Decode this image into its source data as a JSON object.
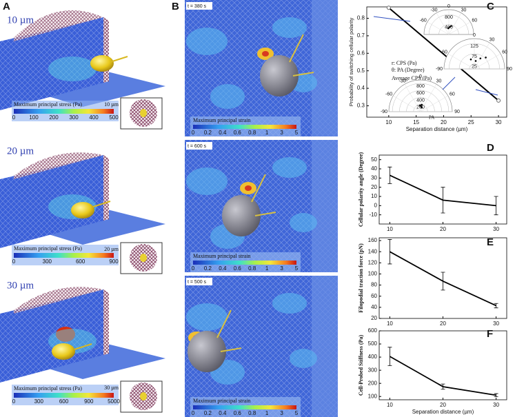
{
  "panels": {
    "a": "A",
    "b": "B",
    "c": "C",
    "d": "D",
    "e": "E",
    "f": "F"
  },
  "panel_a": {
    "rows": [
      {
        "label": "10 µm",
        "colorbar_title": "Maximum principal stress (Pa)",
        "colorbar_ticks": [
          0,
          100,
          200,
          300,
          400,
          500
        ],
        "inset_label": "10 µm"
      },
      {
        "label": "20 µm",
        "colorbar_title": "Maximum principal stress (Pa)",
        "colorbar_ticks": [
          0,
          300,
          600,
          900
        ],
        "inset_label": "20 µm"
      },
      {
        "label": "30 µm",
        "colorbar_title": "Maximum principal stress (Pa)",
        "colorbar_ticks": [
          0,
          300,
          600,
          900,
          5000
        ],
        "inset_label": "30 µm"
      }
    ]
  },
  "panel_b": {
    "rows": [
      {
        "time": "t = 380 s",
        "colorbar_title": "Maximum principal strain",
        "colorbar_ticks": [
          0,
          0.2,
          0.4,
          0.6,
          0.8,
          1,
          3,
          5
        ]
      },
      {
        "time": "t = 600 s",
        "colorbar_title": "Maximum principal strain",
        "colorbar_ticks": [
          0,
          0.2,
          0.4,
          0.6,
          0.8,
          1,
          3,
          5
        ]
      },
      {
        "time": "t = 500 s",
        "colorbar_title": "Maximum principal strain",
        "colorbar_ticks": [
          0,
          0.2,
          0.4,
          0.6,
          0.8,
          1,
          3,
          5
        ]
      }
    ]
  },
  "chart_data": [
    {
      "type": "line",
      "x": [
        10,
        30
      ],
      "values": [
        0.86,
        0.33
      ],
      "color": "#000000",
      "xlabel": "Separation distance (µm)",
      "ylabel": "Probability of switching cellular polarity",
      "xlim": [
        6,
        31.5
      ],
      "ylim": [
        0.235,
        0.865
      ],
      "xticks": [
        10,
        15,
        20,
        25,
        30
      ],
      "yticks": [
        0.3,
        0.4,
        0.5,
        0.6,
        0.7,
        0.8
      ],
      "annotations": [
        "r: CPS (Pa)",
        "θ: PA (Degree)",
        "Average CPS (Pa)"
      ],
      "insets": [
        {
          "theta_ticks": [
            -60,
            -30,
            0,
            30,
            60
          ],
          "r_ticks": [
            400,
            800
          ],
          "rlim": [
            0,
            1000
          ],
          "points": [
            [
              5,
              300
            ],
            [
              15,
              350
            ],
            [
              -5,
              250
            ]
          ]
        },
        {
          "theta_ticks": [
            -90,
            -60,
            0,
            30,
            60,
            90
          ],
          "r_ticks": [
            25,
            75,
            125
          ],
          "rlim": [
            0,
            150
          ],
          "points": [
            [
              30,
              60
            ],
            [
              45,
              80
            ],
            [
              10,
              40
            ],
            [
              -20,
              50
            ]
          ]
        },
        {
          "theta_ticks": [
            -90,
            -60,
            -30,
            0,
            30,
            60,
            90
          ],
          "r_ticks": [
            200,
            400,
            600,
            800
          ],
          "rlim": [
            0,
            900
          ],
          "points": [
            [
              5,
              150
            ],
            [
              10,
              200
            ],
            [
              -5,
              180
            ],
            [
              15,
              120
            ]
          ],
          "theta_label": "PA"
        }
      ]
    },
    {
      "type": "errorline",
      "x": [
        10,
        20,
        30
      ],
      "values": [
        33,
        6,
        0
      ],
      "errors": [
        9,
        14,
        10
      ],
      "color": "#000000",
      "ylabel": "Cellular polarity angle (Degree)",
      "xlim": [
        8,
        32
      ],
      "ylim": [
        -20,
        55
      ],
      "xticks": [
        10,
        20,
        30
      ],
      "yticks": [
        -10,
        0,
        10,
        20,
        30,
        40,
        50
      ]
    },
    {
      "type": "errorline",
      "x": [
        10,
        20,
        30
      ],
      "values": [
        140,
        87,
        43
      ],
      "errors": [
        22,
        16,
        4
      ],
      "color": "#000000",
      "ylabel": "Filopodial traction force (pN)",
      "xlim": [
        8,
        32
      ],
      "ylim": [
        20,
        165
      ],
      "xticks": [
        10,
        20,
        30
      ],
      "yticks": [
        20,
        40,
        60,
        80,
        100,
        120,
        140,
        160
      ]
    },
    {
      "type": "errorline",
      "x": [
        10,
        20,
        30
      ],
      "values": [
        405,
        175,
        110
      ],
      "errors": [
        70,
        20,
        12
      ],
      "color": "#000000",
      "ylabel": "Cell-Probed Stiffness (Pa)",
      "xlabel": "Separation distance (µm)",
      "xlim": [
        8,
        32
      ],
      "ylim": [
        75,
        600
      ],
      "xticks": [
        10,
        20,
        30
      ],
      "yticks": [
        100,
        200,
        300,
        400,
        500,
        600
      ]
    }
  ]
}
